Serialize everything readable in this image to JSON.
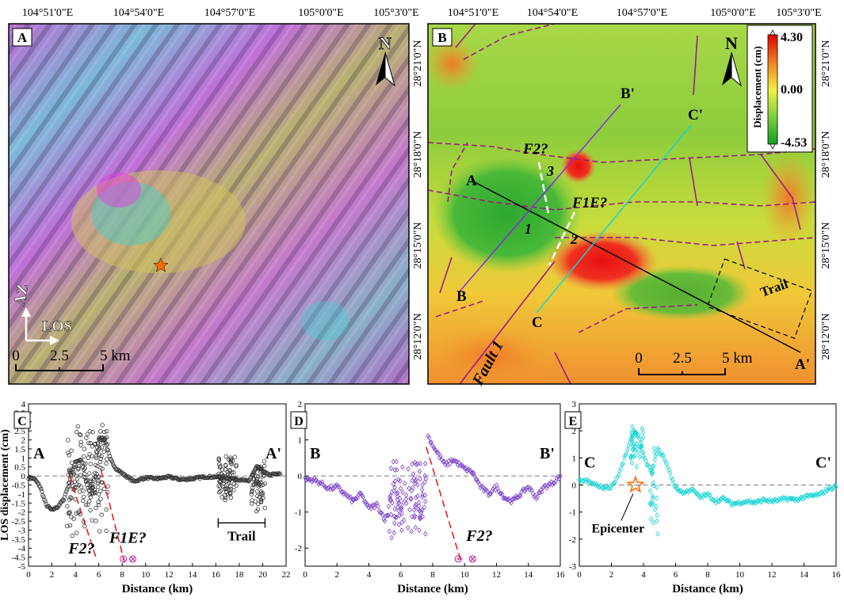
{
  "panel_a": {
    "letter": "A",
    "top_ticks": [
      "104°51'0\"E",
      "104°54'0\"E",
      "104°57'0\"E",
      "105°0'0\"E",
      "105°3'0\"E"
    ],
    "north_label": "N",
    "az_label": "AZ",
    "los_label": "LOS",
    "scale_labels": [
      "0",
      "2.5",
      "5 km"
    ]
  },
  "panel_b": {
    "letter": "B",
    "top_ticks": [
      "104°51'0\"E",
      "104°54'0\"E",
      "104°57'0\"E",
      "105°0'0\"E",
      "105°3'0\"E"
    ],
    "right_ticks": [
      "28°21'0\"N",
      "28°18'0\"N",
      "28°15'0\"N",
      "28°12'0\"N"
    ],
    "north_label": "N",
    "colorbar_title": "Displacement (cm)",
    "colorbar_max": "4.30",
    "colorbar_mid": "0.00",
    "colorbar_min": "-4.53",
    "profile_labels": [
      "A",
      "A'",
      "B",
      "B'",
      "C",
      "C'"
    ],
    "fault_labels": [
      "F2?",
      "F1E?",
      "Fault 1"
    ],
    "zone_numbers": [
      "1",
      "2",
      "3"
    ],
    "trail_label": "Trail",
    "scale_labels": [
      "0",
      "2.5",
      "5 km"
    ]
  },
  "left_axis_ticks": [
    "28°21'0\"N",
    "28°18'0\"N",
    "28°15'0\"N",
    "28°12'0\"N"
  ],
  "colors": {
    "profile_aa": "#000000",
    "profile_bb": "#8a2be2",
    "profile_cc": "#17d4d4",
    "fault": "#a01a8a",
    "star": "#ff6a00",
    "dashed_red": "#e02020"
  },
  "chart_data": [
    {
      "panel": "C",
      "type": "scatter",
      "ylabel": "LOS displacement (cm)",
      "xlabel": "Distance (km)",
      "xlim": [
        0,
        22
      ],
      "ylim": [
        -5,
        4
      ],
      "xticks": [
        0,
        2,
        4,
        6,
        8,
        10,
        12,
        14,
        16,
        18,
        20,
        22
      ],
      "yticks": [
        -5,
        -4.5,
        -4,
        -3.5,
        -3,
        -2.5,
        -2,
        -1.5,
        -1,
        -0.5,
        0,
        0.5,
        1,
        1.5,
        2,
        2.5,
        3,
        3.5,
        4
      ],
      "series": [
        {
          "marker": "open-circle",
          "color": "#333333",
          "profile": [
            [
              0,
              -0.1
            ],
            [
              0.5,
              -0.15
            ],
            [
              1,
              -0.6
            ],
            [
              1.5,
              -1.6
            ],
            [
              2,
              -1.9
            ],
            [
              2.5,
              -1.7
            ],
            [
              3,
              -1.3
            ],
            [
              3.5,
              -0.3
            ],
            [
              4,
              0.8
            ],
            [
              4.5,
              0.9
            ],
            [
              5,
              -0.5
            ],
            [
              5.3,
              -1.2
            ],
            [
              5.6,
              -0.2
            ],
            [
              6,
              2.1
            ],
            [
              6.5,
              2.0
            ],
            [
              7,
              0.9
            ],
            [
              7.5,
              0.4
            ],
            [
              8,
              0.15
            ],
            [
              9,
              -0.3
            ],
            [
              10,
              -0.1
            ],
            [
              11,
              -0.15
            ],
            [
              12,
              -0.05
            ],
            [
              13,
              -0.2
            ],
            [
              14,
              -0.15
            ],
            [
              15,
              -0.05
            ],
            [
              16,
              -0.05
            ],
            [
              17,
              -0.1
            ],
            [
              18,
              -0.2
            ],
            [
              18.8,
              -0.3
            ],
            [
              19.5,
              0.5
            ],
            [
              20,
              0.3
            ],
            [
              20.5,
              0.05
            ],
            [
              21,
              0.1
            ],
            [
              21.5,
              0.1
            ]
          ],
          "scatter_zones": [
            [
              3.3,
              6.8,
              -3.5,
              3.4
            ],
            [
              16.2,
              17.8,
              -1.5,
              1.4
            ],
            [
              19,
              20.2,
              -2.3,
              1.1
            ]
          ]
        }
      ],
      "annotations": {
        "start_label": "A",
        "end_label": "A'",
        "fault_labels": [
          "F2?",
          "F1E?"
        ],
        "trail_label": "Trail",
        "trail_range_km": [
          16.2,
          20.2
        ],
        "fault_lines_km": [
          [
            3.5,
            0,
            5.8,
            -4.6
          ],
          [
            6.2,
            0.3,
            8.2,
            -4.8
          ]
        ]
      }
    },
    {
      "panel": "D",
      "type": "scatter",
      "xlabel": "Distance (km)",
      "xlim": [
        0,
        16
      ],
      "ylim": [
        -2.5,
        2
      ],
      "xticks": [
        0,
        2,
        4,
        6,
        8,
        10,
        12,
        14,
        16
      ],
      "yticks": [
        -2,
        -1,
        0,
        1,
        2
      ],
      "series": [
        {
          "marker": "open-diamond",
          "color": "#7b3fc8",
          "profile": [
            [
              0,
              -0.1
            ],
            [
              0.5,
              -0.1
            ],
            [
              1,
              -0.2
            ],
            [
              1.5,
              -0.35
            ],
            [
              2,
              -0.3
            ],
            [
              2.5,
              -0.5
            ],
            [
              3,
              -0.7
            ],
            [
              3.5,
              -0.5
            ],
            [
              4,
              -0.9
            ],
            [
              4.5,
              -0.8
            ],
            [
              5,
              -1.2
            ],
            [
              5.3,
              -1.0
            ],
            [
              7.7,
              1.1
            ],
            [
              8.2,
              0.7
            ],
            [
              8.8,
              0.3
            ],
            [
              9.3,
              0.45
            ],
            [
              10,
              0.2
            ],
            [
              10.5,
              0.1
            ],
            [
              11,
              -0.3
            ],
            [
              11.5,
              -0.5
            ],
            [
              12,
              -0.3
            ],
            [
              12.5,
              -0.6
            ],
            [
              13,
              -0.7
            ],
            [
              13.5,
              -0.5
            ],
            [
              14,
              -0.3
            ],
            [
              14.5,
              -0.6
            ],
            [
              15,
              -0.3
            ],
            [
              15.5,
              -0.2
            ],
            [
              16,
              0.0
            ]
          ],
          "scatter_zones": [
            [
              5.2,
              7.6,
              -1.9,
              0.6
            ]
          ]
        }
      ],
      "annotations": {
        "start_label": "B",
        "end_label": "B'",
        "fault_labels": [
          "F2?"
        ],
        "fault_lines_km": [
          [
            7.6,
            0.8,
            9.8,
            -2.4
          ]
        ]
      }
    },
    {
      "panel": "E",
      "type": "scatter",
      "xlabel": "Distance (km)",
      "xlim": [
        0,
        16
      ],
      "ylim": [
        -3,
        3
      ],
      "xticks": [
        0,
        2,
        4,
        6,
        8,
        10,
        12,
        14,
        16
      ],
      "yticks": [
        -3,
        -2,
        -1,
        0,
        1,
        2,
        3
      ],
      "series": [
        {
          "marker": "open-diamond",
          "color": "#17d4d4",
          "profile": [
            [
              0,
              0.15
            ],
            [
              0.5,
              0.15
            ],
            [
              1,
              0.0
            ],
            [
              1.5,
              -0.1
            ],
            [
              2,
              -0.05
            ],
            [
              2.3,
              0.2
            ],
            [
              2.6,
              0.6
            ],
            [
              3,
              1.3
            ],
            [
              3.4,
              2.0
            ],
            [
              3.7,
              1.8
            ],
            [
              4,
              1.0
            ],
            [
              4.5,
              0.5
            ],
            [
              4.9,
              1.3
            ],
            [
              5.3,
              1.0
            ],
            [
              5.8,
              0.2
            ],
            [
              6,
              -0.1
            ],
            [
              6.5,
              -0.3
            ],
            [
              7,
              -0.15
            ],
            [
              7.5,
              -0.45
            ],
            [
              8,
              -0.35
            ],
            [
              8.5,
              -0.6
            ],
            [
              9,
              -0.5
            ],
            [
              9.5,
              -0.7
            ],
            [
              10,
              -0.65
            ],
            [
              10.5,
              -0.6
            ],
            [
              11,
              -0.65
            ],
            [
              11.5,
              -0.55
            ],
            [
              12,
              -0.6
            ],
            [
              12.5,
              -0.55
            ],
            [
              13,
              -0.5
            ],
            [
              13.5,
              -0.55
            ],
            [
              14,
              -0.45
            ],
            [
              14.5,
              -0.4
            ],
            [
              15,
              -0.35
            ],
            [
              15.5,
              -0.15
            ],
            [
              16,
              -0.05
            ]
          ],
          "scatter_zones": [
            [
              3.2,
              4.0,
              0.5,
              2.5
            ],
            [
              4.4,
              4.9,
              -2.0,
              1.5
            ]
          ]
        }
      ],
      "annotations": {
        "start_label": "C",
        "end_label": "C'",
        "epicenter_label": "Epicenter",
        "epicenter_km": [
          3.5,
          0.0
        ]
      }
    }
  ]
}
